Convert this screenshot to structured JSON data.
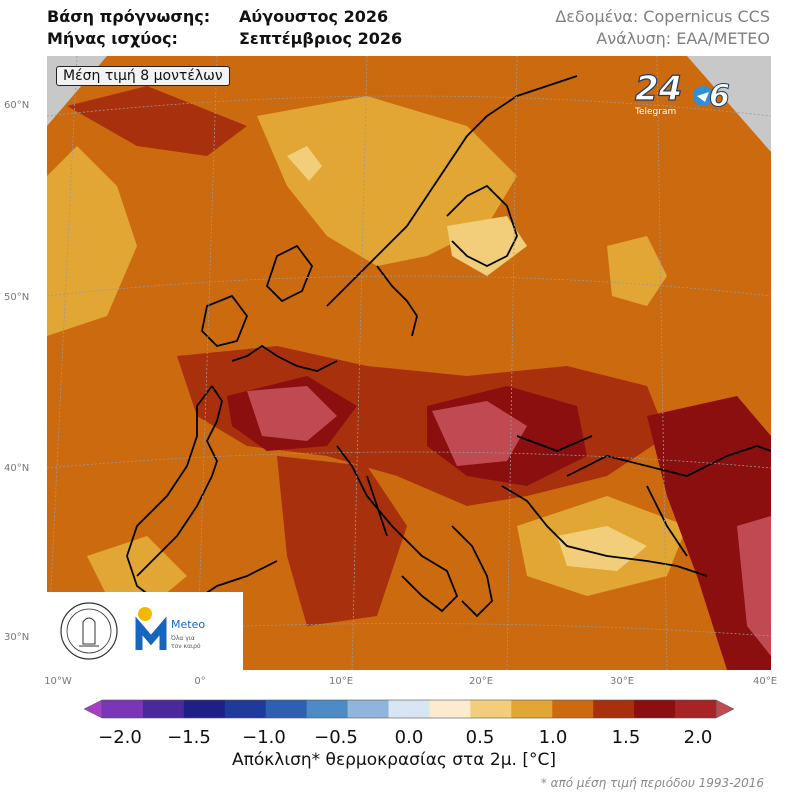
{
  "header": {
    "base_label": "Βάση πρόγνωσης:",
    "base_value": "Αύγουστος 2026",
    "valid_label": "Μήνας ισχύος:",
    "valid_value": "Σεπτέμβριος 2026",
    "source": "Δεδομένα: Copernicus CCS",
    "analysis": "Ανάλυση: ΕΑΑ/METEO"
  },
  "map": {
    "badge": "Μέση τιμή 8 μοντέλων",
    "lat_labels": [
      "60°N",
      "50°N",
      "40°N",
      "30°N"
    ],
    "lon_labels": [
      "10°W",
      "0°",
      "10°E",
      "20°E",
      "30°E",
      "40°E"
    ],
    "regions": {
      "default_anomaly": "1.0 to 1.5",
      "north_scandinavia": "0.5 to 1.0",
      "france_spain": "1.5 to 2.0",
      "hungary_balkans": "1.5 to 2.0",
      "central_europe": "1.5 to 2.0"
    }
  },
  "logos": {
    "telegram_badge": "24",
    "telegram_sub": "Telegram",
    "meteo_name": "Meteo",
    "meteo_tagline_1": "Όλα για",
    "meteo_tagline_2": "τον καιρό"
  },
  "colorbar": {
    "ticks": [
      "−2.0",
      "−1.5",
      "−1.0",
      "−0.5",
      "0.0",
      "0.5",
      "1.0",
      "1.5",
      "2.0"
    ],
    "colors": [
      "#a63fc6",
      "#7a35b8",
      "#4a2a9a",
      "#1f1f88",
      "#1e3a9c",
      "#2f5fb0",
      "#4e8ac4",
      "#8fb6da",
      "#d7e6f2",
      "#fbecd0",
      "#f2cd7a",
      "#e2a634",
      "#cc6a10",
      "#a8300c",
      "#8b0f0f",
      "#a82424",
      "#c04a52"
    ],
    "label": "Απόκλιση* θερμοκρασίας στα 2μ. [°C]",
    "footnote": "* από μέση τιμή περιόδου 1993-2016"
  }
}
